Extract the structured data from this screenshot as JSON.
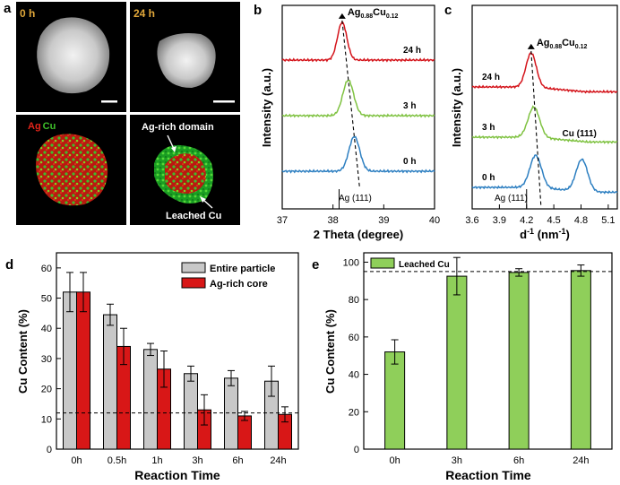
{
  "panels": {
    "a": {
      "label": "a",
      "tl_time": "0 h",
      "tr_time": "24 h",
      "map_ag": "Ag",
      "map_cu": "Cu",
      "note_domain": "Ag-rich domain",
      "note_leached": "Leached Cu"
    },
    "b": {
      "label": "b"
    },
    "c": {
      "label": "c"
    },
    "d": {
      "label": "d"
    },
    "e": {
      "label": "e"
    }
  },
  "colors": {
    "red": "#d4141b",
    "green": "#7fc241",
    "blue": "#2d7fc1",
    "grey": "#c8c8c8",
    "bar_green": "#8fcf5a",
    "bar_red": "#d81717"
  },
  "chart_data": [
    {
      "id": "b",
      "type": "line",
      "title": "",
      "xlabel": "2 Theta (degree)",
      "ylabel": "Intensity (a.u.)",
      "xlim": [
        37,
        40
      ],
      "xticks": [
        37,
        38,
        39,
        40
      ],
      "peak_label_main": "Ag",
      "peak_label_sub1": "0.88",
      "peak_label_mid": "Cu",
      "peak_label_sub2": "0.12",
      "reference_label": "Ag (111)",
      "reference_x": 38.12,
      "series": [
        {
          "name": "24 h",
          "color": "red",
          "peak": 38.18,
          "height": 0.85,
          "width": 0.13,
          "offset": 2.0
        },
        {
          "name": "3 h",
          "color": "green",
          "peak": 38.3,
          "height": 0.8,
          "width": 0.15,
          "offset": 1.0
        },
        {
          "name": "0 h",
          "color": "blue",
          "peak": 38.42,
          "height": 0.78,
          "width": 0.15,
          "offset": 0.0
        }
      ]
    },
    {
      "id": "c",
      "type": "line",
      "title": "",
      "xlabel_main": "d",
      "xlabel_sup1": "-1",
      "xlabel_mid": " (nm",
      "xlabel_sup2": "-1",
      "xlabel_end": ")",
      "ylabel": "Intensity (a.u.)",
      "xlim": [
        3.6,
        5.2
      ],
      "xticks": [
        3.6,
        3.9,
        4.2,
        4.5,
        4.8,
        5.1
      ],
      "peak_label_main": "Ag",
      "peak_label_sub1": "0.88",
      "peak_label_mid": "Cu",
      "peak_label_sub2": "0.12",
      "reference_label": "Ag (111)",
      "reference_x": 4.2,
      "cu_label": "Cu (111)",
      "series": [
        {
          "name": "24 h",
          "color": "red",
          "peak": 4.25,
          "height": 0.85,
          "width": 0.08,
          "offset": 2.0
        },
        {
          "name": "3 h",
          "color": "green",
          "peak": 4.28,
          "height": 0.75,
          "width": 0.09,
          "offset": 1.0
        },
        {
          "name": "0 h",
          "color": "blue",
          "peak": 4.3,
          "height": 0.8,
          "width": 0.09,
          "offset": 0.0,
          "second_peak": 4.81,
          "second_height": 0.8
        }
      ]
    },
    {
      "id": "d",
      "type": "bar",
      "title": "",
      "xlabel": "Reaction Time",
      "ylabel": "Cu Content (%)",
      "ylim": [
        0,
        65
      ],
      "yticks": [
        0,
        10,
        20,
        30,
        40,
        50,
        60
      ],
      "categories": [
        "0h",
        "0.5h",
        "1h",
        "3h",
        "6h",
        "24h"
      ],
      "reference_line": 12,
      "series": [
        {
          "name": "Entire particle",
          "color": "grey",
          "values": [
            52,
            44.5,
            33,
            25,
            23.5,
            22.5
          ],
          "errors": [
            6.5,
            3.5,
            2,
            2.5,
            2.5,
            5
          ]
        },
        {
          "name": "Ag-rich core",
          "color": "bar_red",
          "values": [
            52,
            34,
            26.5,
            13,
            11,
            11.5
          ],
          "errors": [
            6.5,
            6,
            6,
            5,
            1.5,
            2.5
          ]
        }
      ]
    },
    {
      "id": "e",
      "type": "bar",
      "title": "",
      "xlabel": "Reaction Time",
      "ylabel": "Cu Content (%)",
      "ylim": [
        0,
        105
      ],
      "yticks": [
        0,
        20,
        40,
        60,
        80,
        100
      ],
      "categories": [
        "0h",
        "3h",
        "6h",
        "24h"
      ],
      "reference_line": 95,
      "series": [
        {
          "name": "Leached Cu",
          "color": "bar_green",
          "values": [
            52,
            92.5,
            94.5,
            95.5
          ],
          "errors": [
            6.5,
            10,
            2,
            3
          ]
        }
      ]
    }
  ]
}
